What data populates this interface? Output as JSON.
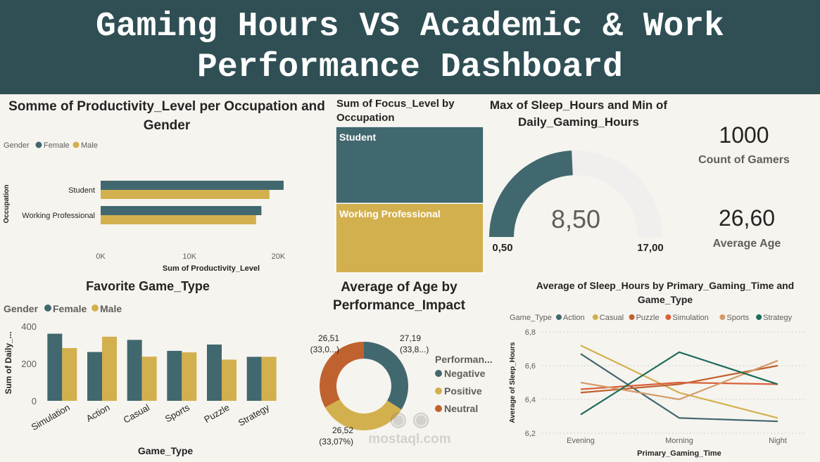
{
  "header": {
    "title": "Gaming Hours VS Academic & Work Performance Dashboard"
  },
  "colors": {
    "female": "#41686e",
    "male": "#d3b04e",
    "header": "#2f4f54"
  },
  "watermark": {
    "text": "mostaql.com"
  },
  "cards": {
    "count": {
      "value": "1000",
      "label": "Count of Gamers"
    },
    "age": {
      "value": "26,60",
      "label": "Average Age"
    }
  },
  "chart_data": [
    {
      "id": "productivity",
      "type": "bar",
      "orientation": "horizontal",
      "title": "Somme of Productivity_Level per Occupation and Gender",
      "legend_title": "Gender",
      "categories": [
        "Student",
        "Working Professional"
      ],
      "series": [
        {
          "name": "Female",
          "color": "#41686e",
          "values": [
            20600,
            18100
          ]
        },
        {
          "name": "Male",
          "color": "#d3b04e",
          "values": [
            19000,
            17500
          ]
        }
      ],
      "xlabel": "Sum of Productivity_Level",
      "ylabel": "Occupation",
      "xlim": [
        0,
        21000
      ],
      "ticks": [
        0,
        10000,
        20000
      ],
      "tick_labels": [
        "0K",
        "10K",
        "20K"
      ]
    },
    {
      "id": "focus",
      "type": "treemap",
      "title": "Sum of Focus_Level by Occupation",
      "categories": [
        "Student",
        "Working Professional"
      ],
      "values": [
        52.5,
        47.5
      ],
      "colors": [
        "#41686e",
        "#d3b04e"
      ]
    },
    {
      "id": "gauge",
      "type": "gauge",
      "title": "Max of Sleep_Hours and Min of Daily_Gaming_Hours",
      "value": 8.5,
      "value_label": "8,50",
      "min": 0.5,
      "min_label": "0,50",
      "max": 17.0,
      "max_label": "17,00"
    },
    {
      "id": "gametype",
      "type": "bar",
      "title": "Favorite Game_Type",
      "legend_title": "Gender",
      "categories": [
        "Simulation",
        "Action",
        "Casual",
        "Sports",
        "Puzzle",
        "Strategy"
      ],
      "series": [
        {
          "name": "Female",
          "color": "#41686e",
          "values": [
            360,
            262,
            327,
            268,
            302,
            236
          ]
        },
        {
          "name": "Male",
          "color": "#d3b04e",
          "values": [
            283,
            344,
            237,
            260,
            221,
            236
          ]
        }
      ],
      "xlabel": "Game_Type",
      "ylabel": "Sum of Daily_...",
      "ylim": [
        0,
        430
      ],
      "ticks": [
        0,
        200,
        400
      ]
    },
    {
      "id": "age",
      "type": "pie",
      "donut": true,
      "title": "Average of Age by Performance_Impact",
      "legend_title": "Performan...",
      "categories": [
        "Negative",
        "Positive",
        "Neutral"
      ],
      "values": [
        27.19,
        26.52,
        26.51
      ],
      "percents": [
        "(33,8...)",
        "(33,07%)",
        "(33,0...)"
      ],
      "value_labels": [
        "27,19",
        "26,52",
        "26,51"
      ],
      "colors": [
        "#41686e",
        "#d3b04e",
        "#c0622f"
      ]
    },
    {
      "id": "sleep",
      "type": "line",
      "title": "Average of Sleep_Hours by Primary_Gaming_Time and Game_Type",
      "legend_title": "Game_Type",
      "x": [
        "Evening",
        "Morning",
        "Night"
      ],
      "series": [
        {
          "name": "Action",
          "color": "#41686e",
          "values": [
            6.67,
            6.29,
            6.27
          ]
        },
        {
          "name": "Casual",
          "color": "#d3b04e",
          "values": [
            6.72,
            6.44,
            6.29
          ]
        },
        {
          "name": "Puzzle",
          "color": "#c0622f",
          "values": [
            6.44,
            6.49,
            6.6
          ]
        },
        {
          "name": "Simulation",
          "color": "#d9623b",
          "values": [
            6.46,
            6.5,
            6.49
          ]
        },
        {
          "name": "Sports",
          "color": "#d49a6a",
          "values": [
            6.5,
            6.4,
            6.63
          ]
        },
        {
          "name": "Strategy",
          "color": "#1d6b5a",
          "values": [
            6.31,
            6.68,
            6.49
          ]
        }
      ],
      "xlabel": "Primary_Gaming_Time",
      "ylabel": "Average of Sleep_Hours",
      "ylim": [
        6.2,
        6.8
      ],
      "ticks": [
        6.2,
        6.4,
        6.6,
        6.8
      ],
      "tick_labels": [
        "6,2",
        "6,4",
        "6,6",
        "6,8"
      ]
    }
  ]
}
